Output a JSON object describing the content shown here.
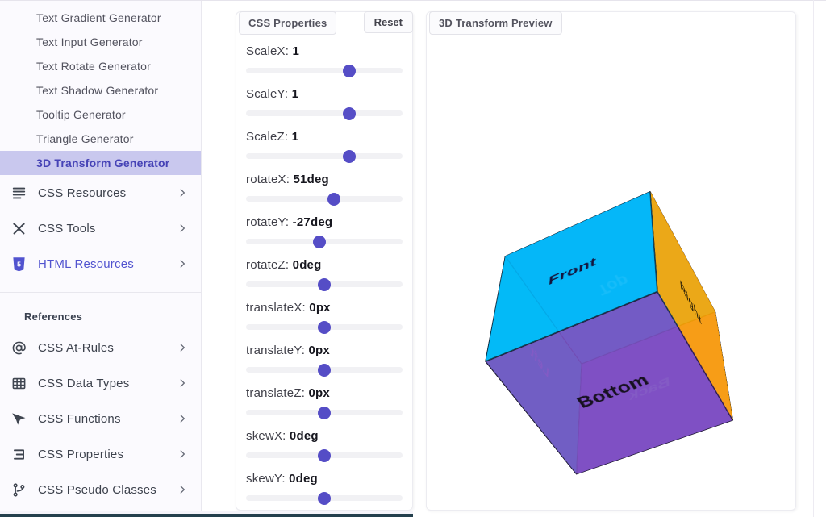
{
  "sidebar": {
    "generators": [
      {
        "label": "Text Gradient Generator",
        "active": false
      },
      {
        "label": "Text Input Generator",
        "active": false
      },
      {
        "label": "Text Rotate Generator",
        "active": false
      },
      {
        "label": "Text Shadow Generator",
        "active": false
      },
      {
        "label": "Tooltip Generator",
        "active": false
      },
      {
        "label": "Triangle Generator",
        "active": false
      },
      {
        "label": "3D Transform Generator",
        "active": true
      }
    ],
    "categories": [
      {
        "label": "CSS Resources",
        "icon": "lines-icon",
        "accent": false
      },
      {
        "label": "CSS Tools",
        "icon": "tools-icon",
        "accent": false
      },
      {
        "label": "HTML Resources",
        "icon": "html5-icon",
        "accent": true
      }
    ],
    "references_header": "References",
    "references": [
      {
        "label": "CSS At-Rules",
        "icon": "at-icon"
      },
      {
        "label": "CSS Data Types",
        "icon": "table-icon"
      },
      {
        "label": "CSS Functions",
        "icon": "send-icon"
      },
      {
        "label": "CSS Properties",
        "icon": "brackets-icon"
      },
      {
        "label": "CSS Pseudo Classes",
        "icon": "branch-icon"
      }
    ]
  },
  "panel": {
    "title": "CSS Properties",
    "reset_label": "Reset",
    "sliders": [
      {
        "label": "ScaleX:",
        "value": "1",
        "fraction": 66
      },
      {
        "label": "ScaleY:",
        "value": "1",
        "fraction": 66
      },
      {
        "label": "ScaleZ:",
        "value": "1",
        "fraction": 66
      },
      {
        "label": "rotateX:",
        "value": "51deg",
        "fraction": 56
      },
      {
        "label": "rotateY:",
        "value": "-27deg",
        "fraction": 47
      },
      {
        "label": "rotateZ:",
        "value": "0deg",
        "fraction": 50
      },
      {
        "label": "translateX:",
        "value": "0px",
        "fraction": 50
      },
      {
        "label": "translateY:",
        "value": "0px",
        "fraction": 50
      },
      {
        "label": "translateZ:",
        "value": "0px",
        "fraction": 50
      },
      {
        "label": "skewX:",
        "value": "0deg",
        "fraction": 50
      },
      {
        "label": "skewY:",
        "value": "0deg",
        "fraction": 50
      }
    ]
  },
  "preview": {
    "title": "3D Transform Preview",
    "cube": {
      "transform": "rotateX(51deg) rotateY(-27deg)",
      "faces": [
        {
          "name": "back",
          "label": "Back",
          "color": "rgba(155,64,232,0.9)",
          "label_color": "#d9c9f3"
        },
        {
          "name": "left",
          "label": "Left",
          "color": "rgba(0,229,224,0.9)",
          "label_color": "#cfc4ee"
        },
        {
          "name": "top",
          "label": "Top",
          "color": "rgba(24,199,240,0.9)",
          "label_color": "#e6fdff"
        },
        {
          "name": "front",
          "label": "Front",
          "color": "rgba(0,181,248,0.9)",
          "label_color": "#14143c"
        },
        {
          "name": "right",
          "label": "Right",
          "color": "rgba(255,164,0,0.9)",
          "label_color": "#2e2208"
        },
        {
          "name": "bottom",
          "label": "Bottom",
          "color": "rgba(122,79,192,0.9)",
          "label_color": "#16101f"
        }
      ]
    }
  },
  "theme": {
    "accent": "#554dc6",
    "active_item_bg": "#c9c8ee",
    "active_item_text": "#4643b6",
    "footer_bar": "#24404d"
  }
}
